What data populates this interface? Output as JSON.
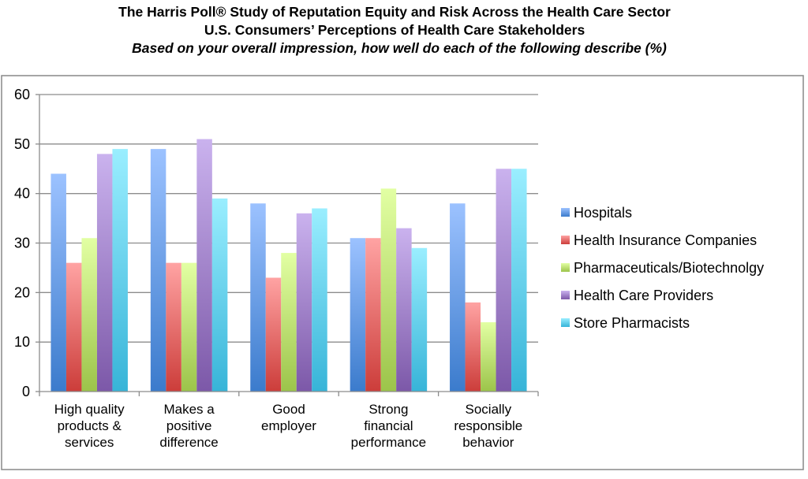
{
  "chart_data": {
    "type": "bar",
    "title": "The Harris Poll® Study of Reputation Equity and Risk Across the Health Care Sector",
    "subtitle": "U.S. Consumers’ Perceptions of Health Care Stakeholders",
    "question": "Based on your overall impression, how well do each of the following describe (%)",
    "categories": [
      [
        "High quality",
        "products &",
        "services"
      ],
      [
        "Makes a",
        "positive",
        "difference"
      ],
      [
        "Good",
        "employer"
      ],
      [
        "Strong",
        "financial",
        "performance"
      ],
      [
        "Socially",
        "responsible",
        "behavior"
      ]
    ],
    "series": [
      {
        "name": "Hospitals",
        "values": [
          44,
          49,
          38,
          31,
          38
        ],
        "color_top": "#9cc2ff",
        "color_bottom": "#3b7bcc"
      },
      {
        "name": "Health Insurance Companies",
        "values": [
          26,
          26,
          23,
          31,
          18
        ],
        "color_top": "#ffa3a3",
        "color_bottom": "#cc3d3a"
      },
      {
        "name": "Pharmaceuticals/Biotechnolgy",
        "values": [
          31,
          26,
          28,
          41,
          14
        ],
        "color_top": "#e2ffa3",
        "color_bottom": "#9cc44a"
      },
      {
        "name": "Health Care Providers",
        "values": [
          48,
          51,
          36,
          33,
          45
        ],
        "color_top": "#cab2ee",
        "color_bottom": "#7c58a8"
      },
      {
        "name": "Store Pharmacists",
        "values": [
          49,
          39,
          37,
          29,
          45
        ],
        "color_top": "#9aeeff",
        "color_bottom": "#37b4d8"
      }
    ],
    "yticks": [
      0,
      10,
      20,
      30,
      40,
      50,
      60
    ],
    "ylim": [
      0,
      60
    ],
    "grid": true,
    "legend": "right",
    "xlabel": "",
    "ylabel": ""
  }
}
